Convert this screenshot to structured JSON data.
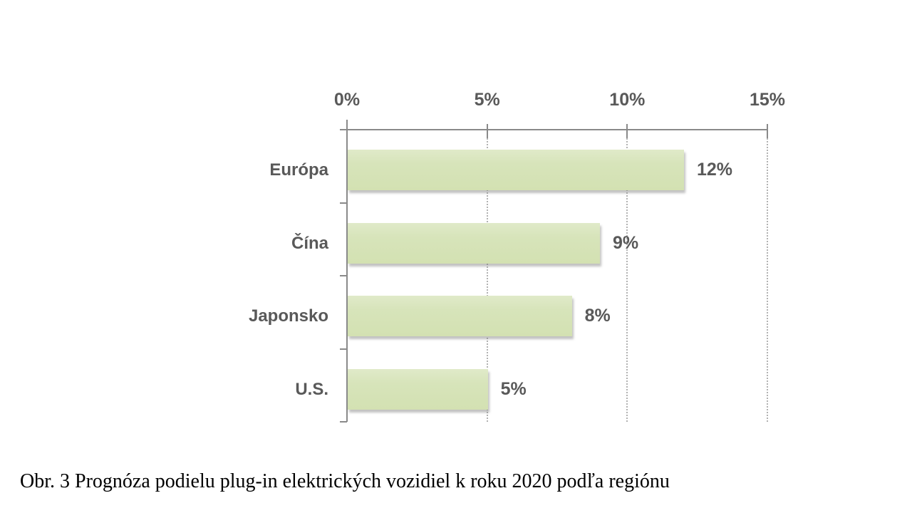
{
  "caption": "Obr. 3 Prognóza podielu plug-in elektrických vozidiel k roku 2020 podľa regiónu",
  "chart_data": {
    "type": "bar",
    "orientation": "horizontal",
    "title": "",
    "categories": [
      "Európa",
      "Čína",
      "Japonsko",
      "U.S."
    ],
    "values": [
      12,
      9,
      8,
      5
    ],
    "value_labels": [
      "12%",
      "9%",
      "8%",
      "5%"
    ],
    "x_axis": {
      "position": "top",
      "min": 0,
      "max": 15,
      "tick_values": [
        0,
        5,
        10,
        15
      ],
      "tick_labels": [
        "0%",
        "5%",
        "10%",
        "15%"
      ]
    },
    "grid": "vertical-dotted",
    "legend": "none",
    "colors": {
      "bar_fill": "#d7e4ba",
      "axis_line": "#8a8a8a",
      "gridline": "#b2b2b2",
      "chart_text": "#595959",
      "caption_text": "#000000"
    }
  }
}
